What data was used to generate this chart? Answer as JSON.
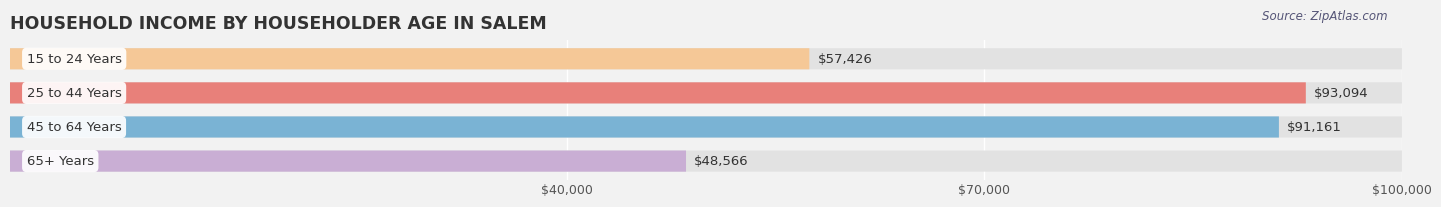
{
  "title": "HOUSEHOLD INCOME BY HOUSEHOLDER AGE IN SALEM",
  "source": "Source: ZipAtlas.com",
  "categories": [
    "15 to 24 Years",
    "25 to 44 Years",
    "45 to 64 Years",
    "65+ Years"
  ],
  "values": [
    57426,
    93094,
    91161,
    48566
  ],
  "bar_colors": [
    "#f5c897",
    "#e8807a",
    "#7ab3d4",
    "#c9aed4"
  ],
  "background_color": "#f2f2f2",
  "bar_bg_color": "#e2e2e2",
  "xlim": [
    0,
    100000
  ],
  "xticks": [
    40000,
    70000,
    100000
  ],
  "xtick_labels": [
    "$40,000",
    "$70,000",
    "$100,000"
  ],
  "value_labels": [
    "$57,426",
    "$93,094",
    "$91,161",
    "$48,566"
  ],
  "title_fontsize": 12.5,
  "label_fontsize": 9.5,
  "tick_fontsize": 9,
  "source_fontsize": 8.5
}
